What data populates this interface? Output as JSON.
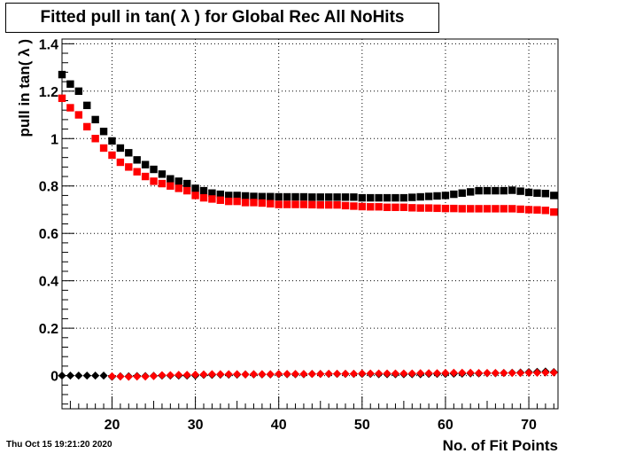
{
  "title": "Fitted pull in tan( λ ) for Global Rec All NoHits",
  "date_stamp": "Thu Oct 15 19:21:20 2020",
  "chart_data": {
    "type": "scatter",
    "title": "Fitted pull in tan( λ ) for Global Rec All NoHits",
    "xlabel": "No. of Fit Points",
    "ylabel": "pull in tan( λ )",
    "xlim": [
      14,
      73.5
    ],
    "ylim": [
      -0.14,
      1.42
    ],
    "grid": true,
    "xticks": [
      20,
      30,
      40,
      50,
      60,
      70
    ],
    "yticks": [
      0,
      0.2,
      0.4,
      0.6,
      0.8,
      1,
      1.2,
      1.4
    ],
    "ytick_labels": [
      "0",
      "0.2",
      "0.4",
      "0.6",
      "0.8",
      "1",
      "1.2",
      "1.4"
    ],
    "x": [
      14,
      15,
      16,
      17,
      18,
      19,
      20,
      21,
      22,
      23,
      24,
      25,
      26,
      27,
      28,
      29,
      30,
      31,
      32,
      33,
      34,
      35,
      36,
      37,
      38,
      39,
      40,
      41,
      42,
      43,
      44,
      45,
      46,
      47,
      48,
      49,
      50,
      51,
      52,
      53,
      54,
      55,
      56,
      57,
      58,
      59,
      60,
      61,
      62,
      63,
      64,
      65,
      66,
      67,
      68,
      69,
      70,
      71,
      72,
      73
    ],
    "series": [
      {
        "marker": "square",
        "color": "#000000",
        "values": [
          1.27,
          1.23,
          1.2,
          1.14,
          1.08,
          1.03,
          0.99,
          0.96,
          0.94,
          0.91,
          0.89,
          0.87,
          0.85,
          0.83,
          0.82,
          0.81,
          0.79,
          0.78,
          0.77,
          0.765,
          0.76,
          0.76,
          0.758,
          0.756,
          0.755,
          0.755,
          0.754,
          0.754,
          0.754,
          0.754,
          0.753,
          0.753,
          0.753,
          0.753,
          0.753,
          0.753,
          0.75,
          0.75,
          0.75,
          0.75,
          0.75,
          0.75,
          0.752,
          0.754,
          0.756,
          0.758,
          0.76,
          0.765,
          0.77,
          0.775,
          0.78,
          0.78,
          0.78,
          0.78,
          0.782,
          0.778,
          0.773,
          0.77,
          0.768,
          0.76
        ]
      },
      {
        "marker": "square",
        "color": "#ff0000",
        "values": [
          1.17,
          1.13,
          1.1,
          1.05,
          1.0,
          0.96,
          0.93,
          0.9,
          0.88,
          0.86,
          0.84,
          0.82,
          0.81,
          0.8,
          0.79,
          0.78,
          0.76,
          0.75,
          0.745,
          0.74,
          0.735,
          0.735,
          0.73,
          0.73,
          0.728,
          0.725,
          0.722,
          0.722,
          0.722,
          0.722,
          0.721,
          0.72,
          0.72,
          0.72,
          0.717,
          0.715,
          0.713,
          0.712,
          0.712,
          0.71,
          0.71,
          0.71,
          0.708,
          0.707,
          0.707,
          0.706,
          0.705,
          0.705,
          0.704,
          0.704,
          0.704,
          0.704,
          0.704,
          0.704,
          0.704,
          0.702,
          0.7,
          0.699,
          0.697,
          0.69
        ]
      },
      {
        "marker": "diamond",
        "color": "#000000",
        "values": [
          0,
          0,
          0,
          0,
          0,
          0,
          -0.005,
          -0.003,
          -0.003,
          -0.002,
          -0.002,
          -0.001,
          0,
          0,
          0,
          0,
          0,
          0.003,
          0.003,
          0.004,
          0.004,
          0.004,
          0.005,
          0.005,
          0.005,
          0.005,
          0.006,
          0.006,
          0.006,
          0.006,
          0.007,
          0.007,
          0.007,
          0.007,
          0.007,
          0.007,
          0.007,
          0.007,
          0.006,
          0.006,
          0.006,
          0.006,
          0.006,
          0.006,
          0.007,
          0.007,
          0.007,
          0.008,
          0.008,
          0.009,
          0.009,
          0.01,
          0.01,
          0.011,
          0.012,
          0.013,
          0.015,
          0.016,
          0.017,
          0.015
        ]
      },
      {
        "marker": "diamond",
        "color": "#ff0000",
        "values": [
          null,
          null,
          null,
          null,
          null,
          null,
          -0.003,
          -0.004,
          -0.005,
          -0.004,
          -0.004,
          -0.002,
          0.002,
          0.002,
          0.003,
          0.003,
          0.004,
          0.005,
          0.006,
          0.006,
          0.006,
          0.006,
          0.005,
          0.006,
          0.006,
          0.006,
          0.007,
          0.007,
          0.007,
          0.007,
          0.007,
          0.007,
          0.008,
          0.008,
          0.008,
          0.008,
          0.009,
          0.009,
          0.009,
          0.009,
          0.009,
          0.009,
          0.009,
          0.01,
          0.01,
          0.01,
          0.011,
          0.012,
          0.012,
          0.012,
          0.011,
          0.011,
          0.011,
          0.011,
          0.011,
          0.011,
          0.012,
          0.012,
          0.013,
          0.013
        ]
      }
    ]
  }
}
